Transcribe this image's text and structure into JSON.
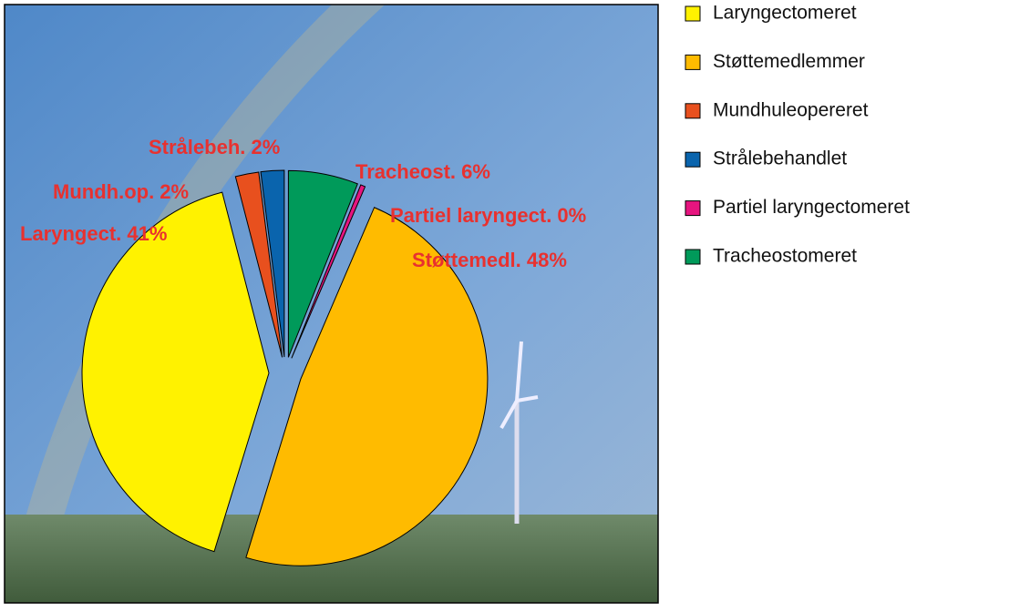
{
  "chart_data": {
    "type": "pie",
    "categories": [
      "Laryngectomeret",
      "Støttemedlemmer",
      "Mundhuleopereret",
      "Strålebehandlet",
      "Partiel laryngectomeret",
      "Tracheostomeret"
    ],
    "values": [
      41,
      48,
      2,
      2,
      0.4,
      6
    ],
    "value_labels": [
      "Laryngect. 41%",
      "Støttemedl. 48%",
      "Mundh.op. 2%",
      "Strålebeh. 2%",
      "Partiel laryngect. 0%",
      "Tracheost. 6%"
    ],
    "colors": [
      "#fff200",
      "#ffbb00",
      "#e8501e",
      "#0a64ad",
      "#e6157f",
      "#009a5a"
    ],
    "legend": "right"
  }
}
